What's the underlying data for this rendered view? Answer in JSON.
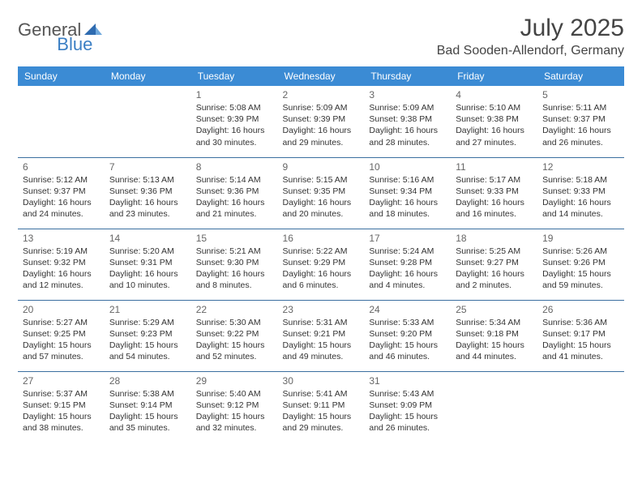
{
  "logo": {
    "general": "General",
    "blue": "Blue"
  },
  "title": {
    "month": "July 2025",
    "location": "Bad Sooden-Allendorf, Germany"
  },
  "colors": {
    "header_bg": "#3b8bd4",
    "header_text": "#ffffff",
    "rule": "#3b6fa0",
    "logo_gray": "#555555",
    "logo_blue": "#3b7fc4",
    "body_text": "#333333",
    "daynum_text": "#666666",
    "page_bg": "#ffffff"
  },
  "day_headers": [
    "Sunday",
    "Monday",
    "Tuesday",
    "Wednesday",
    "Thursday",
    "Friday",
    "Saturday"
  ],
  "weeks": [
    [
      null,
      null,
      {
        "n": "1",
        "sr": "5:08 AM",
        "ss": "9:39 PM",
        "dl": "16 hours and 30 minutes."
      },
      {
        "n": "2",
        "sr": "5:09 AM",
        "ss": "9:39 PM",
        "dl": "16 hours and 29 minutes."
      },
      {
        "n": "3",
        "sr": "5:09 AM",
        "ss": "9:38 PM",
        "dl": "16 hours and 28 minutes."
      },
      {
        "n": "4",
        "sr": "5:10 AM",
        "ss": "9:38 PM",
        "dl": "16 hours and 27 minutes."
      },
      {
        "n": "5",
        "sr": "5:11 AM",
        "ss": "9:37 PM",
        "dl": "16 hours and 26 minutes."
      }
    ],
    [
      {
        "n": "6",
        "sr": "5:12 AM",
        "ss": "9:37 PM",
        "dl": "16 hours and 24 minutes."
      },
      {
        "n": "7",
        "sr": "5:13 AM",
        "ss": "9:36 PM",
        "dl": "16 hours and 23 minutes."
      },
      {
        "n": "8",
        "sr": "5:14 AM",
        "ss": "9:36 PM",
        "dl": "16 hours and 21 minutes."
      },
      {
        "n": "9",
        "sr": "5:15 AM",
        "ss": "9:35 PM",
        "dl": "16 hours and 20 minutes."
      },
      {
        "n": "10",
        "sr": "5:16 AM",
        "ss": "9:34 PM",
        "dl": "16 hours and 18 minutes."
      },
      {
        "n": "11",
        "sr": "5:17 AM",
        "ss": "9:33 PM",
        "dl": "16 hours and 16 minutes."
      },
      {
        "n": "12",
        "sr": "5:18 AM",
        "ss": "9:33 PM",
        "dl": "16 hours and 14 minutes."
      }
    ],
    [
      {
        "n": "13",
        "sr": "5:19 AM",
        "ss": "9:32 PM",
        "dl": "16 hours and 12 minutes."
      },
      {
        "n": "14",
        "sr": "5:20 AM",
        "ss": "9:31 PM",
        "dl": "16 hours and 10 minutes."
      },
      {
        "n": "15",
        "sr": "5:21 AM",
        "ss": "9:30 PM",
        "dl": "16 hours and 8 minutes."
      },
      {
        "n": "16",
        "sr": "5:22 AM",
        "ss": "9:29 PM",
        "dl": "16 hours and 6 minutes."
      },
      {
        "n": "17",
        "sr": "5:24 AM",
        "ss": "9:28 PM",
        "dl": "16 hours and 4 minutes."
      },
      {
        "n": "18",
        "sr": "5:25 AM",
        "ss": "9:27 PM",
        "dl": "16 hours and 2 minutes."
      },
      {
        "n": "19",
        "sr": "5:26 AM",
        "ss": "9:26 PM",
        "dl": "15 hours and 59 minutes."
      }
    ],
    [
      {
        "n": "20",
        "sr": "5:27 AM",
        "ss": "9:25 PM",
        "dl": "15 hours and 57 minutes."
      },
      {
        "n": "21",
        "sr": "5:29 AM",
        "ss": "9:23 PM",
        "dl": "15 hours and 54 minutes."
      },
      {
        "n": "22",
        "sr": "5:30 AM",
        "ss": "9:22 PM",
        "dl": "15 hours and 52 minutes."
      },
      {
        "n": "23",
        "sr": "5:31 AM",
        "ss": "9:21 PM",
        "dl": "15 hours and 49 minutes."
      },
      {
        "n": "24",
        "sr": "5:33 AM",
        "ss": "9:20 PM",
        "dl": "15 hours and 46 minutes."
      },
      {
        "n": "25",
        "sr": "5:34 AM",
        "ss": "9:18 PM",
        "dl": "15 hours and 44 minutes."
      },
      {
        "n": "26",
        "sr": "5:36 AM",
        "ss": "9:17 PM",
        "dl": "15 hours and 41 minutes."
      }
    ],
    [
      {
        "n": "27",
        "sr": "5:37 AM",
        "ss": "9:15 PM",
        "dl": "15 hours and 38 minutes."
      },
      {
        "n": "28",
        "sr": "5:38 AM",
        "ss": "9:14 PM",
        "dl": "15 hours and 35 minutes."
      },
      {
        "n": "29",
        "sr": "5:40 AM",
        "ss": "9:12 PM",
        "dl": "15 hours and 32 minutes."
      },
      {
        "n": "30",
        "sr": "5:41 AM",
        "ss": "9:11 PM",
        "dl": "15 hours and 29 minutes."
      },
      {
        "n": "31",
        "sr": "5:43 AM",
        "ss": "9:09 PM",
        "dl": "15 hours and 26 minutes."
      },
      null,
      null
    ]
  ],
  "labels": {
    "sunrise": "Sunrise: ",
    "sunset": "Sunset: ",
    "daylight": "Daylight: "
  }
}
